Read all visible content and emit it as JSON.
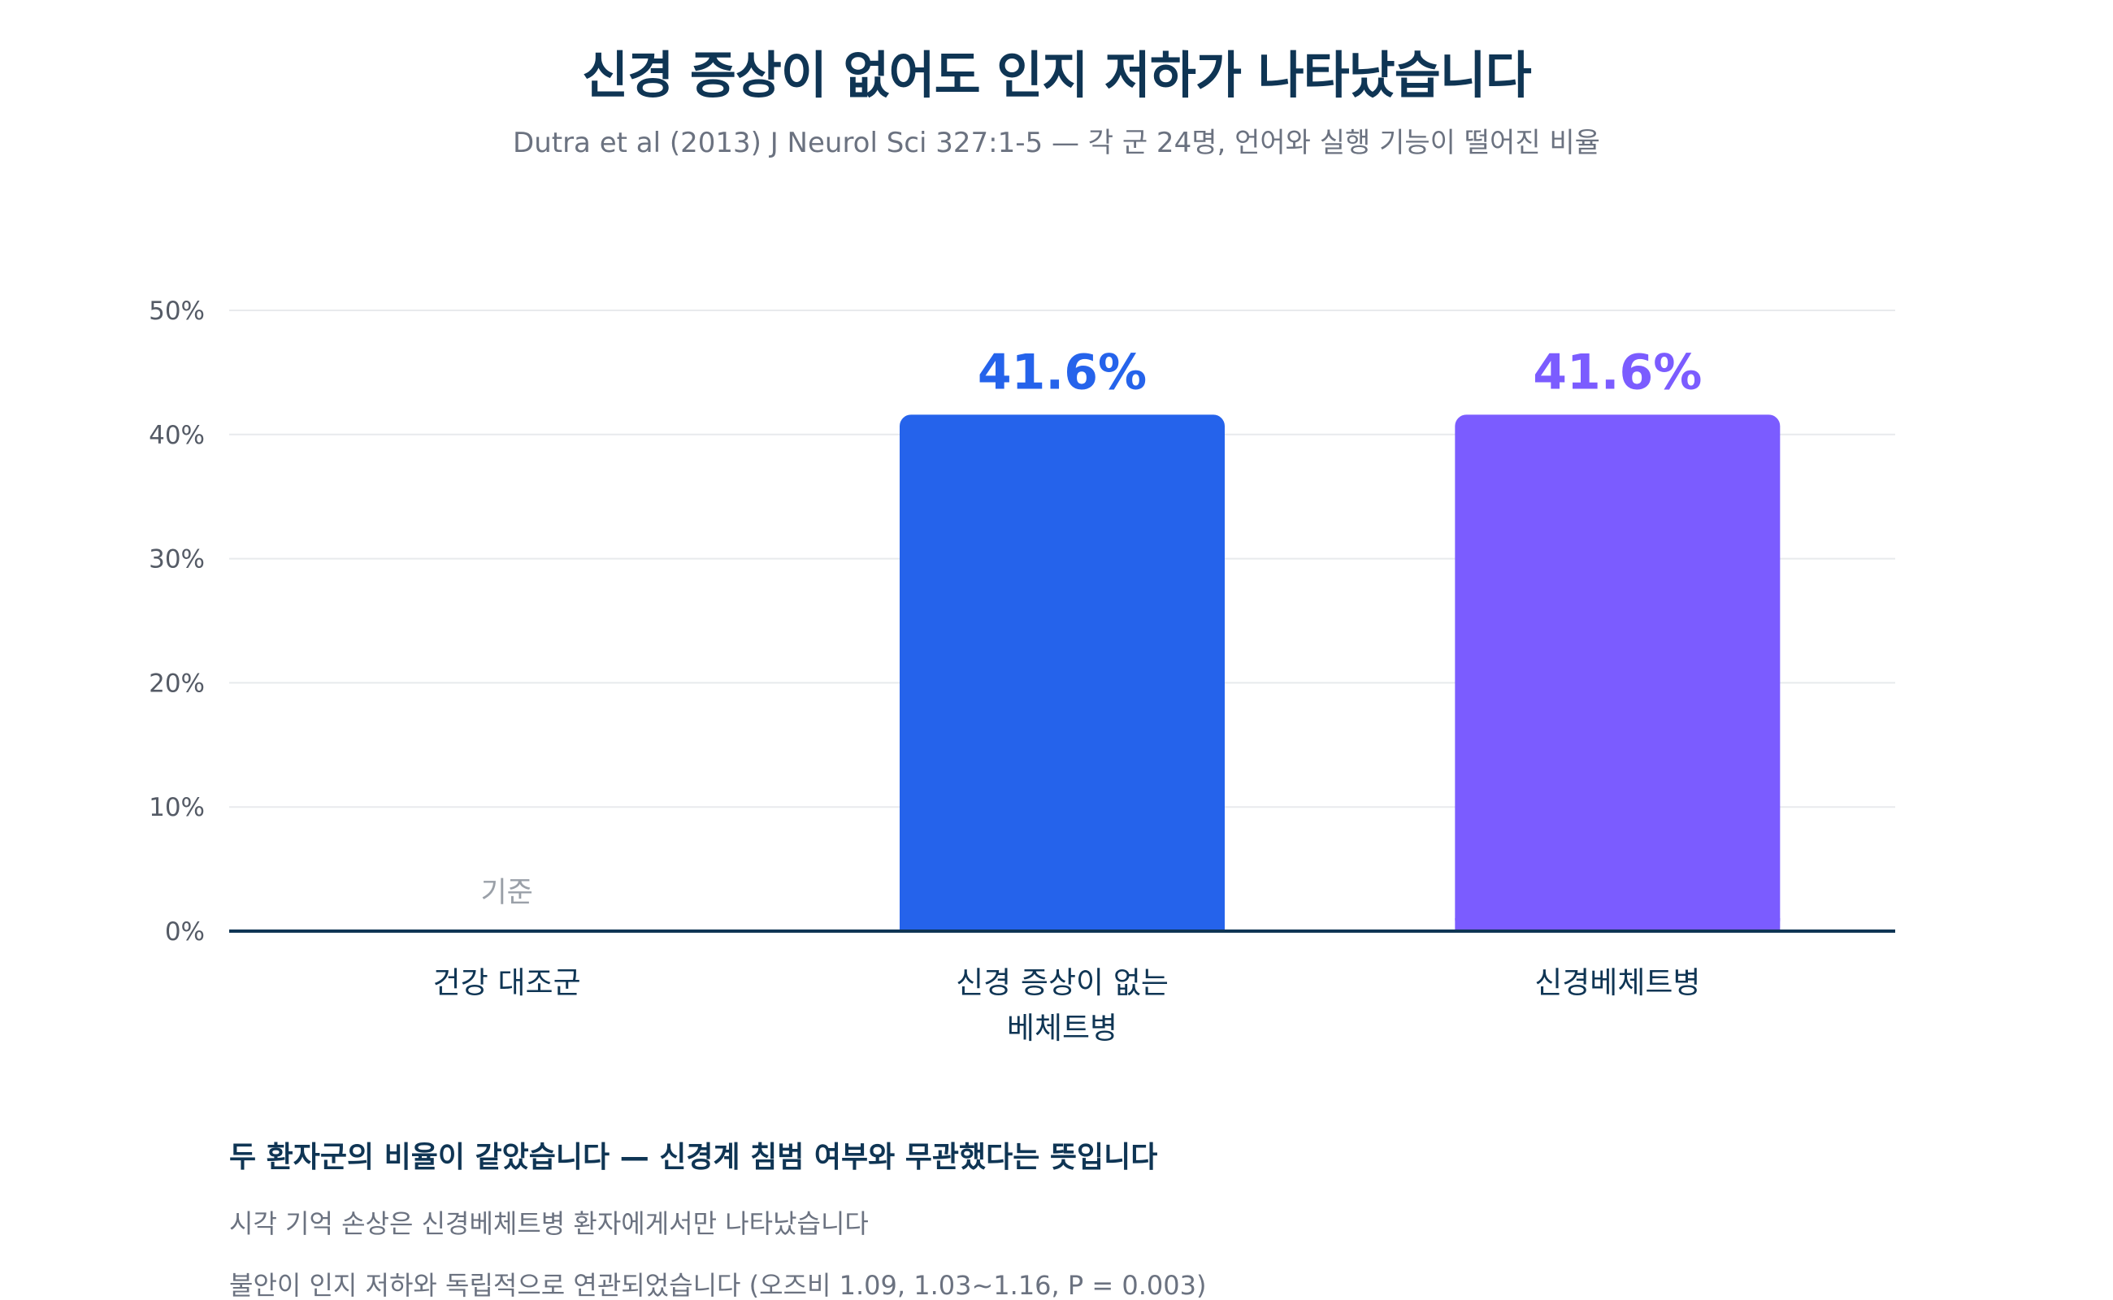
{
  "header": {
    "title": "신경 증상이 없어도 인지 저하가 나타났습니다",
    "subtitle": "Dutra et al (2013) J Neurol Sci 327:1-5 — 각 군 24명, 언어와 실행 기능이 떨어진 비율"
  },
  "chart_data": {
    "type": "bar",
    "categories": [
      [
        "건강 대조군"
      ],
      [
        "신경 증상이 없는",
        "베체트병"
      ],
      [
        "신경베체트병"
      ]
    ],
    "values": [
      0,
      41.6,
      41.6
    ],
    "value_labels": [
      null,
      "41.6%",
      "41.6%"
    ],
    "baseline_note": "기준",
    "bar_colors": [
      "#2563eb",
      "#2563eb",
      "#7b5cff"
    ],
    "ylim": [
      0,
      50
    ],
    "yticks": [
      0,
      10,
      20,
      30,
      40,
      50
    ],
    "ytick_labels": [
      "0%",
      "10%",
      "20%",
      "30%",
      "40%",
      "50%"
    ],
    "grid": true,
    "xlabel": "",
    "ylabel": ""
  },
  "notes": {
    "heading": "두 환자군의 비율이 같았습니다 — 신경계 침범 여부와 무관했다는 뜻입니다",
    "lines": [
      "시각 기억 손상은 신경베체트병 환자에게서만 나타났습니다",
      "불안이 인지 저하와 독립적으로 연관되었습니다 (오즈비 1.09, 1.03~1.16, P = 0.003)"
    ]
  },
  "colors": {
    "title": "#0f3554",
    "axis": "#0f3554",
    "grid": "#e8eaed",
    "muted": "#6b7280"
  }
}
